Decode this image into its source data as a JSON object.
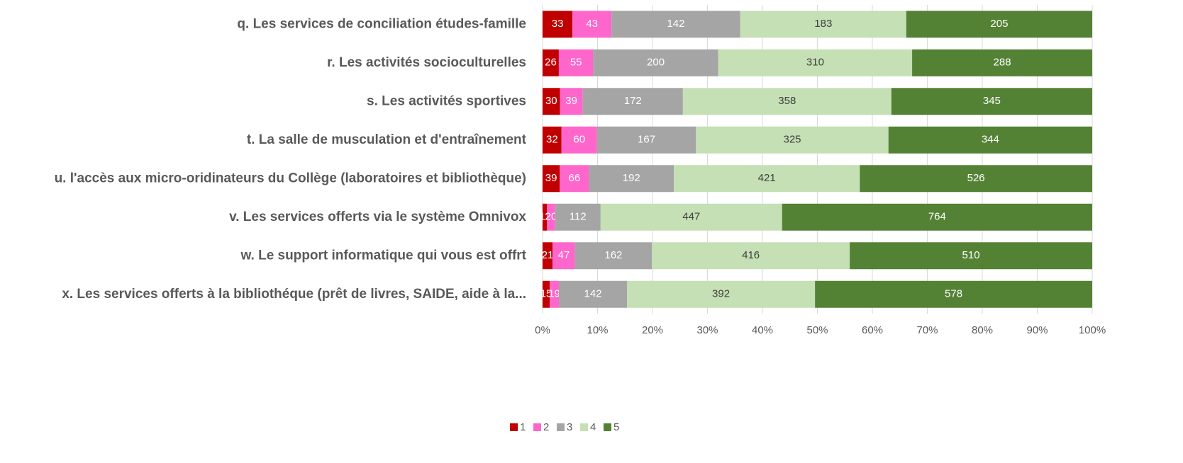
{
  "chart_data": {
    "type": "bar",
    "orientation": "horizontal",
    "stacking": "percent",
    "categories": [
      "q. Les services de conciliation études-famille",
      "r. Les activités socioculturelles",
      "s. Les activités sportives",
      "t. La salle de musculation et d'entraînement",
      "u. l'accès aux micro-oridinateurs du Collège (laboratoires et bibliothèque)",
      "v. Les services offerts via le système Omnivox",
      "w. Le support informatique qui vous est offrt",
      "x. Les services offerts à la bibliothéque (prêt de livres, SAIDE, aide à la..."
    ],
    "series": [
      {
        "name": "1",
        "color": "#c00000",
        "values": [
          33,
          26,
          30,
          32,
          39,
          11,
          21,
          15
        ]
      },
      {
        "name": "2",
        "color": "#ff66cc",
        "values": [
          43,
          55,
          39,
          60,
          66,
          20,
          47,
          19
        ]
      },
      {
        "name": "3",
        "color": "#a5a5a5",
        "values": [
          142,
          200,
          172,
          167,
          192,
          112,
          162,
          142
        ]
      },
      {
        "name": "4",
        "color": "#c5e0b4",
        "values": [
          183,
          310,
          358,
          325,
          421,
          447,
          416,
          392
        ]
      },
      {
        "name": "5",
        "color": "#548235",
        "values": [
          205,
          288,
          345,
          344,
          526,
          764,
          510,
          578
        ]
      }
    ],
    "xlim": [
      0,
      100
    ],
    "xticks": [
      {
        "value": 0,
        "label": "0%"
      },
      {
        "value": 10,
        "label": "10%"
      },
      {
        "value": 20,
        "label": "20%"
      },
      {
        "value": 30,
        "label": "30%"
      },
      {
        "value": 40,
        "label": "40%"
      },
      {
        "value": 50,
        "label": "50%"
      },
      {
        "value": 60,
        "label": "60%"
      },
      {
        "value": 70,
        "label": "70%"
      },
      {
        "value": 80,
        "label": "80%"
      },
      {
        "value": 90,
        "label": "90%"
      },
      {
        "value": 100,
        "label": "100%"
      }
    ],
    "grid": true,
    "legend": "bottom"
  }
}
